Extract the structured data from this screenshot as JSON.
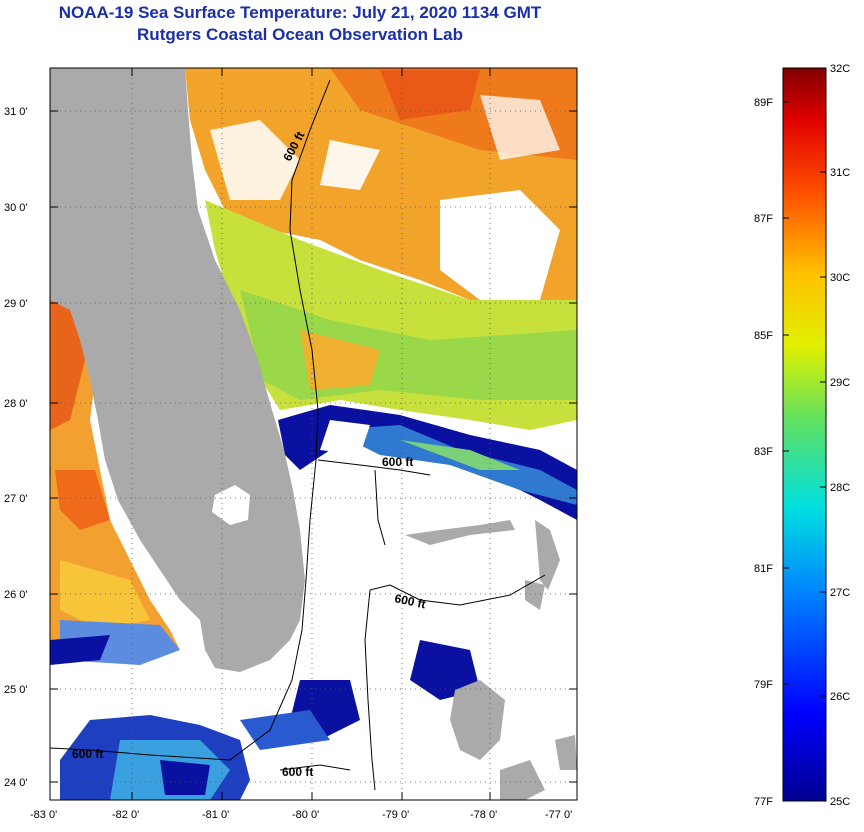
{
  "title": {
    "line1": "NOAA-19 Sea Surface Temperature:  July 21, 2020 1134 GMT",
    "line2": "Rutgers Coastal Ocean Observation Lab"
  },
  "axes": {
    "lon_labels": [
      "-83 0'",
      "-82 0'",
      "-81 0'",
      "-80 0'",
      "-79 0'",
      "-78 0'",
      "-77 0'"
    ],
    "lat_labels": [
      "31 0'",
      "30 0'",
      "29 0'",
      "28 0'",
      "27 0'",
      "26 0'",
      "25 0'",
      "24 0'"
    ]
  },
  "contour_label": "600 ft",
  "colorbar": {
    "celsius": [
      "32C",
      "31C",
      "30C",
      "29C",
      "28C",
      "27C",
      "26C",
      "25C"
    ],
    "fahrenheit": [
      "89F",
      "87F",
      "85F",
      "83F",
      "81F",
      "79F",
      "77F"
    ]
  },
  "colors": {
    "title": "#1a2fa8",
    "land": "#aaaaaa",
    "cloud": "#ffffff",
    "warm": "#f39a20",
    "cool": "#00008f"
  }
}
